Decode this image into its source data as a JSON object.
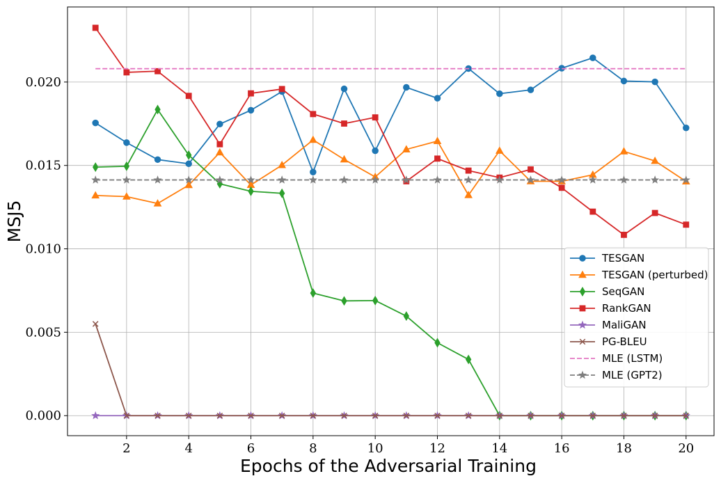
{
  "chart_data": {
    "type": "line",
    "title": "",
    "xlabel": "Epochs of the Adversarial Training",
    "ylabel": "MSJ5",
    "xlim": [
      0.1,
      20.9
    ],
    "ylim": [
      -0.0012,
      0.0245
    ],
    "xticks": [
      2,
      4,
      6,
      8,
      10,
      12,
      14,
      16,
      18,
      20
    ],
    "xtick_labels": [
      "2",
      "4",
      "6",
      "8",
      "10",
      "12",
      "14",
      "16",
      "18",
      "20"
    ],
    "yticks": [
      0,
      0.005,
      0.01,
      0.015,
      0.02
    ],
    "ytick_labels": [
      "0.000",
      "0.005",
      "0.010",
      "0.015",
      "0.020"
    ],
    "grid": true,
    "legend_position": "center-right",
    "x": [
      1,
      2,
      3,
      4,
      5,
      6,
      7,
      8,
      9,
      10,
      11,
      12,
      13,
      14,
      15,
      16,
      17,
      18,
      19,
      20
    ],
    "series": [
      {
        "name": "TESGAN",
        "color": "#1f77b4",
        "marker": "circle",
        "dashed": false,
        "values": [
          0.01755,
          0.01637,
          0.01535,
          0.0151,
          0.01748,
          0.01831,
          0.01943,
          0.0146,
          0.01959,
          0.01588,
          0.01968,
          0.01903,
          0.02081,
          0.0193,
          0.01953,
          0.02083,
          0.02145,
          0.02006,
          0.02001,
          0.01725
        ]
      },
      {
        "name": "TESGAN (perturbed)",
        "color": "#ff7f0e",
        "marker": "triangle",
        "dashed": false,
        "values": [
          0.0132,
          0.01313,
          0.01272,
          0.01382,
          0.01578,
          0.01383,
          0.01502,
          0.01653,
          0.01536,
          0.01431,
          0.01596,
          0.01646,
          0.01322,
          0.01588,
          0.01405,
          0.01405,
          0.01444,
          0.01584,
          0.01527,
          0.01404
        ]
      },
      {
        "name": "SeqGAN",
        "color": "#2ca02c",
        "marker": "diamond",
        "dashed": false,
        "values": [
          0.0149,
          0.01495,
          0.01835,
          0.01562,
          0.0139,
          0.01345,
          0.01333,
          0.00735,
          0.00688,
          0.0069,
          0.00597,
          0.00437,
          0.00337,
          0.0,
          0.0,
          0.0,
          0.0,
          0.0,
          0.0,
          0.0
        ]
      },
      {
        "name": "RankGAN",
        "color": "#d62728",
        "marker": "square",
        "dashed": false,
        "values": [
          0.02325,
          0.02058,
          0.02065,
          0.01917,
          0.01627,
          0.01932,
          0.01958,
          0.01808,
          0.01751,
          0.01788,
          0.01405,
          0.01541,
          0.01469,
          0.01427,
          0.01476,
          0.01366,
          0.01223,
          0.01084,
          0.01215,
          0.01145
        ]
      },
      {
        "name": "MaliGAN",
        "color": "#9467bd",
        "marker": "star",
        "dashed": false,
        "values": [
          0.0,
          0.0,
          0.0,
          0.0,
          0.0,
          0.0,
          0.0,
          0.0,
          0.0,
          0.0,
          0.0,
          0.0,
          0.0,
          0.0,
          0.0,
          0.0,
          0.0,
          0.0,
          0.0,
          0.0
        ]
      },
      {
        "name": "PG-BLEU",
        "color": "#8c564b",
        "marker": "x",
        "dashed": false,
        "values": [
          0.0055,
          0.0,
          0.0,
          0.0,
          0.0,
          0.0,
          0.0,
          0.0,
          0.0,
          0.0,
          0.0,
          0.0,
          0.0,
          0.0,
          0.0,
          0.0,
          0.0,
          0.0,
          0.0,
          0.0
        ]
      },
      {
        "name": "MLE (LSTM)",
        "color": "#e377c2",
        "marker": "none",
        "dashed": true,
        "values": [
          0.0208,
          0.0208,
          0.0208,
          0.0208,
          0.0208,
          0.0208,
          0.0208,
          0.0208,
          0.0208,
          0.0208,
          0.0208,
          0.0208,
          0.0208,
          0.0208,
          0.0208,
          0.0208,
          0.0208,
          0.0208,
          0.0208,
          0.0208
        ]
      },
      {
        "name": "MLE (GPT2)",
        "color": "#7f7f7f",
        "marker": "star",
        "dashed": true,
        "values": [
          0.01413,
          0.01413,
          0.01413,
          0.01413,
          0.01413,
          0.01413,
          0.01413,
          0.01413,
          0.01413,
          0.01413,
          0.01413,
          0.01413,
          0.01413,
          0.01413,
          0.01413,
          0.01413,
          0.01413,
          0.01413,
          0.01413,
          0.01413
        ]
      }
    ]
  }
}
